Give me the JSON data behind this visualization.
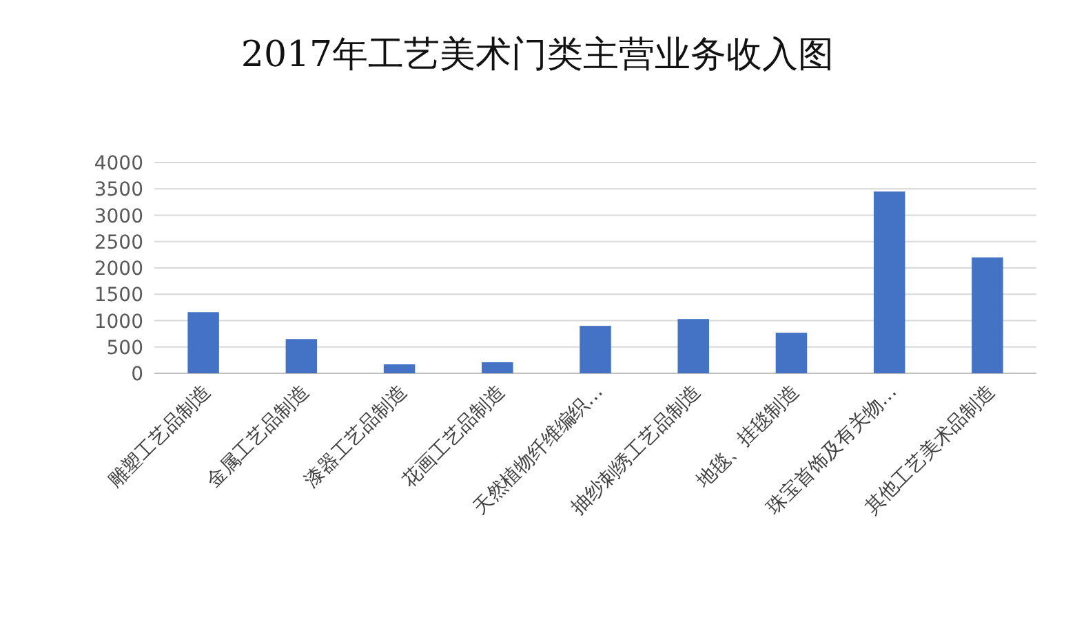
{
  "chart_data": {
    "type": "bar",
    "title": "2017年工艺美术门类主营业务收入图",
    "categories": [
      "雕塑工艺品制造",
      "金属工艺品制造",
      "漆器工艺品制造",
      "花画工艺品制造",
      "天然植物纤维编织…",
      "抽纱刺绣工艺品制造",
      "地毯、挂毯制造",
      "珠宝首饰及有关物…",
      "其他工艺美术品制造"
    ],
    "values": [
      1160,
      650,
      170,
      210,
      900,
      1030,
      770,
      3450,
      2200
    ],
    "color": "#4472c4",
    "ylim": [
      0,
      4000
    ],
    "yticks": [
      0,
      500,
      1000,
      1500,
      2000,
      2500,
      3000,
      3500,
      4000
    ],
    "grid": "y"
  }
}
